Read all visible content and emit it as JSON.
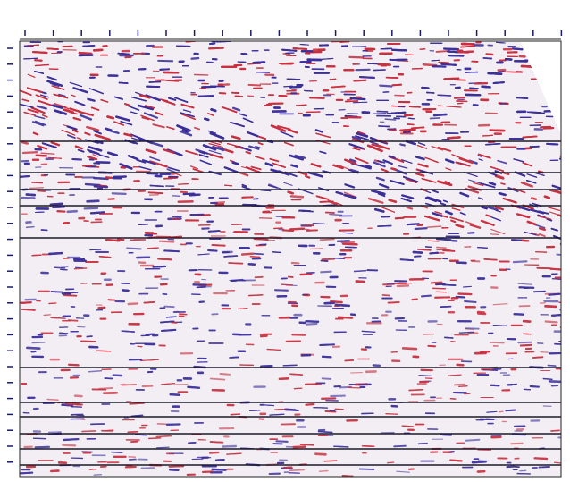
{
  "figure": {
    "type": "seismic-section",
    "top_axis_title": "",
    "left_axis_title": "",
    "horizontal_event_lines": 11,
    "colors": {
      "positive_amplitude": "#c8303f",
      "negative_amplitude": "#3b2f9a",
      "background": "#f2eef4",
      "event_line": "#1c1a2a",
      "frame": "#222222"
    }
  }
}
